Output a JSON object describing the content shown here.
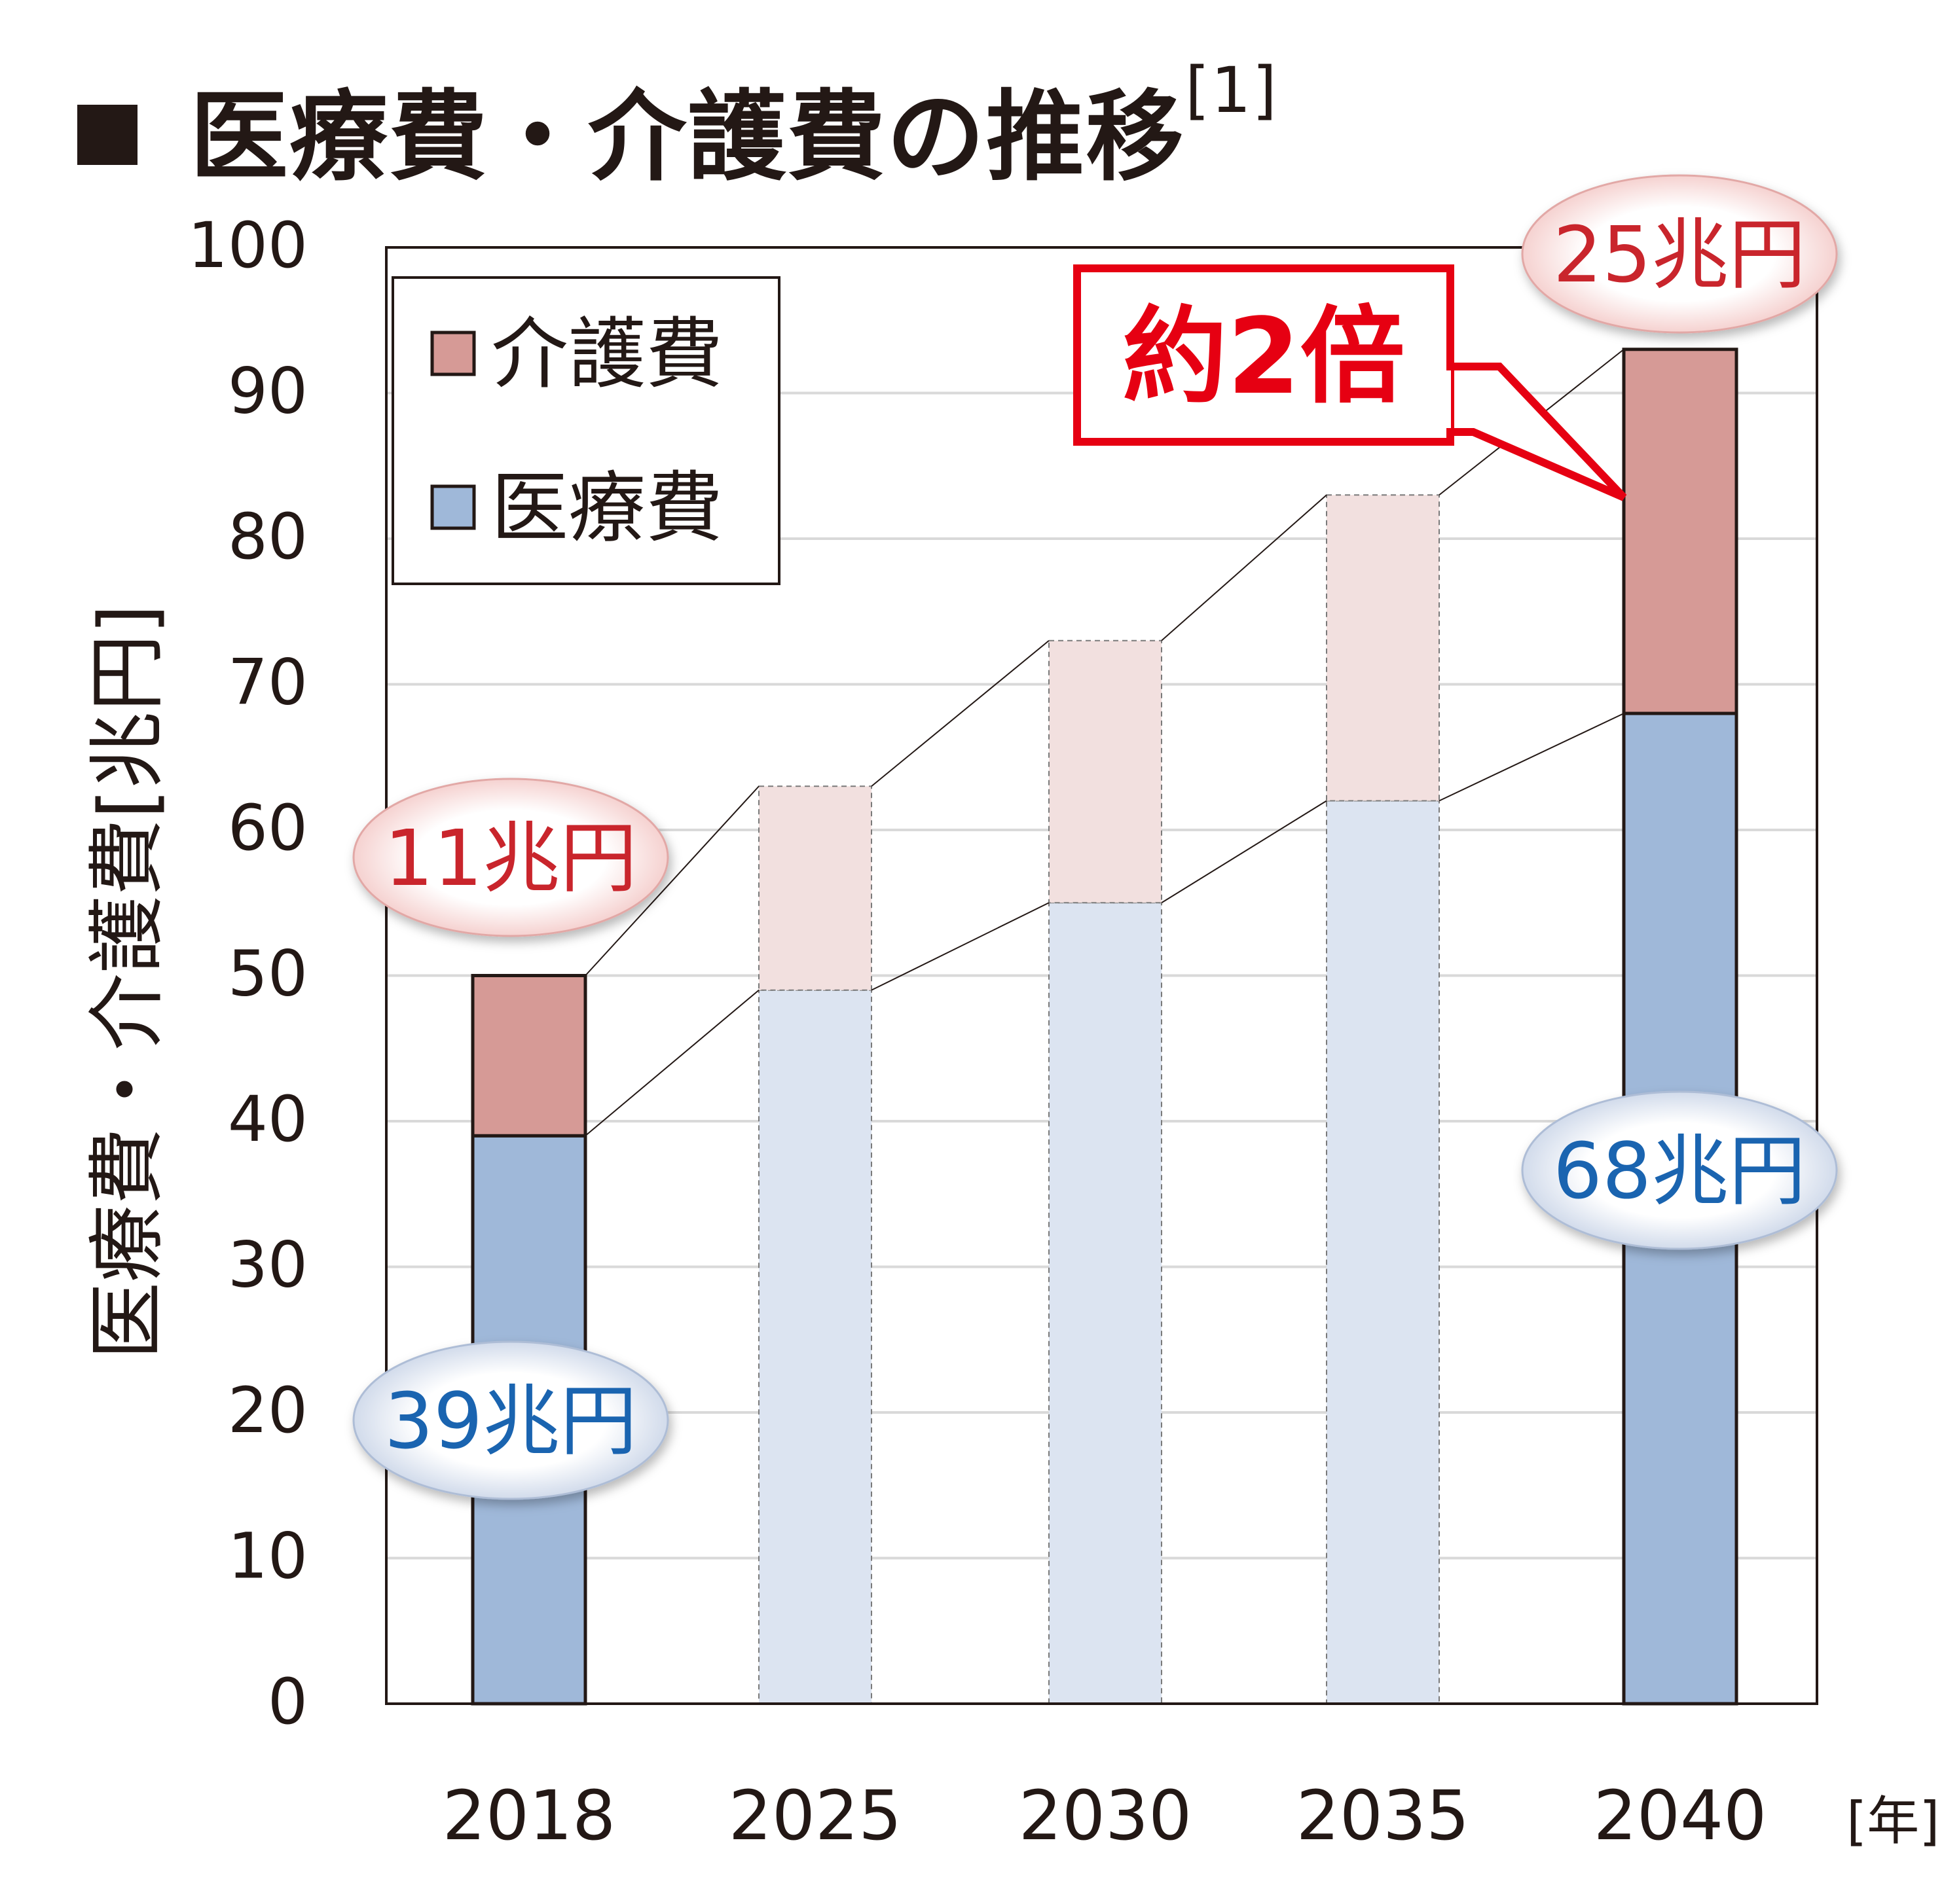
{
  "title": {
    "text": "医療費・介護費の推移",
    "ref": "[1]"
  },
  "chart_data": {
    "type": "bar",
    "stacked": true,
    "categories": [
      "2018",
      "2025",
      "2030",
      "2035",
      "2040"
    ],
    "series": [
      {
        "name": "医療費",
        "values": [
          39,
          49,
          55,
          62,
          68
        ],
        "color": "#9fb8d9"
      },
      {
        "name": "介護費",
        "values": [
          11,
          14,
          18,
          21,
          25
        ],
        "color": "#d69a96"
      }
    ],
    "highlighted_categories": [
      "2018",
      "2040"
    ],
    "faded_colors": {
      "医療費": "#dce4f1",
      "介護費": "#f2e0df"
    },
    "ylabel": "医療費・介護費[兆円]",
    "xunit": "[年]",
    "ylim": [
      0,
      100
    ],
    "yticks": [
      0,
      10,
      20,
      30,
      40,
      50,
      60,
      70,
      80,
      90,
      100
    ],
    "grid": true,
    "legend": {
      "position": "top-left",
      "order": [
        "介護費",
        "医療費"
      ]
    },
    "annotations": {
      "multiplier": {
        "text": "約2倍",
        "color": "#e60012"
      },
      "labels": [
        {
          "text": "11兆円",
          "category": "2018",
          "series": "介護費",
          "color": "#c9252c"
        },
        {
          "text": "39兆円",
          "category": "2018",
          "series": "医療費",
          "color": "#1a64b0"
        },
        {
          "text": "25兆円",
          "category": "2040",
          "series": "介護費",
          "color": "#c9252c"
        },
        {
          "text": "68兆円",
          "category": "2040",
          "series": "医療費",
          "color": "#1a64b0"
        }
      ]
    }
  }
}
